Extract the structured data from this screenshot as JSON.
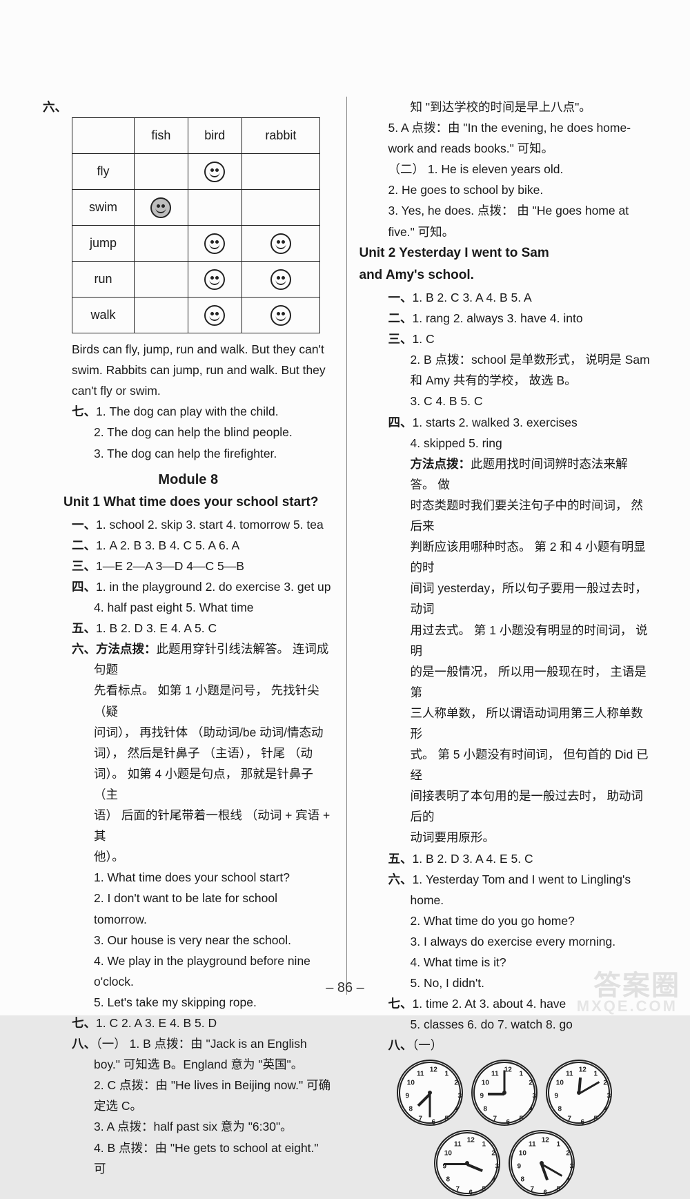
{
  "page_number": "– 86 –",
  "watermark_top": "答案圈",
  "watermark_bottom": "MXQE.COM",
  "table": {
    "columns": [
      "",
      "fish",
      "bird",
      "rabbit"
    ],
    "rows": [
      {
        "label": "fly",
        "cells": [
          "",
          "smile",
          ""
        ]
      },
      {
        "label": "swim",
        "cells": [
          "dark",
          "",
          ""
        ]
      },
      {
        "label": "jump",
        "cells": [
          "",
          "smile",
          "smile"
        ]
      },
      {
        "label": "run",
        "cells": [
          "",
          "smile",
          "smile"
        ]
      },
      {
        "label": "walk",
        "cells": [
          "",
          "smile",
          "smile"
        ]
      }
    ],
    "caption": "Birds can fly, jump, run and walk. But they can't swim. Rabbits can jump, run and walk. But they can't fly or swim."
  },
  "left": {
    "sec6_label": "六、",
    "sec7": {
      "label": "七、",
      "items": [
        "1. The dog can play with the child.",
        "2. The dog can help the blind people.",
        "3. The dog can help the firefighter."
      ]
    },
    "module": "Module 8",
    "unit1_title": "Unit 1  What time does your school start?",
    "q1": {
      "label": "一、",
      "text": "1. school 2. skip 3. start 4. tomorrow 5. tea"
    },
    "q2": {
      "label": "二、",
      "text": "1. A  2. B  3. B  4. C  5. A  6. A"
    },
    "q3": {
      "label": "三、",
      "text": "1—E  2—A  3—D  4—C  5—B"
    },
    "q4": {
      "label": "四、",
      "lines": [
        "1. in the playground  2. do exercise  3. get up",
        "4. half past eight  5. What time"
      ]
    },
    "q5": {
      "label": "五、",
      "text": "1. B  2. D  3. E  4. A  5. C"
    },
    "q6": {
      "label": "六、",
      "heading": "方法点拨：",
      "body": [
        "此题用穿针引线法解答。 连词成句题",
        "先看标点。 如第 1 小题是问号， 先找针尖 （疑",
        "问词）， 再找针体 （助动词/be 动词/情态动",
        "词）， 然后是针鼻子 （主语）， 针尾 （动",
        "词）。 如第 4 小题是句点， 那就是针鼻子 （主",
        "语） 后面的针尾带着一根线 （动词 + 宾语 + 其",
        "他）。"
      ],
      "items": [
        "1. What time does your school start?",
        "2. I don't want to be late for school tomorrow.",
        "3. Our house is very near the school.",
        "4. We play in the playground before nine o'clock.",
        "5. Let's take my skipping rope."
      ]
    },
    "q7": {
      "label": "七、",
      "text": "1. C  2. A  3. E  4. B  5. D"
    },
    "q8": {
      "label": "八、",
      "grp": "（一）",
      "items": [
        "1. B  点拨：由 \"Jack is an English boy.\" 可知选 B。England 意为 \"英国\"。",
        "2. C  点拨：由 \"He lives in Beijing now.\" 可确定选 C。",
        "3. A  点拨：half past six 意为 \"6:30\"。",
        "4. B  点拨：由 \"He gets to school at eight.\" 可"
      ]
    }
  },
  "right": {
    "cont": [
      "知  \"到达学校的时间是早上八点\"。",
      "5. A  点拨：由 \"In the evening, he does home-work and reads books.\" 可知。"
    ],
    "grp2_label": "（二）",
    "grp2_items": [
      "1. He is eleven years old.",
      "2. He goes to school by bike.",
      "3. Yes, he does.    点拨： 由 \"He goes home at five.\" 可知。"
    ],
    "unit2_title_l1": "Unit 2  Yesterday I went to Sam",
    "unit2_title_l2": "and Amy's school.",
    "s1": {
      "label": "一、",
      "text": "1. B  2. C  3. A  4. B  5. A"
    },
    "s2": {
      "label": "二、",
      "text": "1. rang  2. always  3. have  4. into"
    },
    "s3": {
      "label": "三、",
      "lines": [
        "1. C",
        "2. B   点拨：school 是单数形式， 说明是 Sam 和 Amy 共有的学校， 故选 B。",
        "3. C  4. B  5. C"
      ]
    },
    "s4": {
      "label": "四、",
      "lines": [
        "1. starts  2. walked  3. exercises",
        "4. skipped  5. ring"
      ],
      "heading": "方法点拨：",
      "body": [
        "此题用找时间词辨时态法来解答。 做",
        "时态类题时我们要关注句子中的时间词， 然后来",
        "判断应该用哪种时态。 第 2 和 4 小题有明显的时",
        "间词 yesterday，所以句子要用一般过去时， 动词",
        "用过去式。 第 1 小题没有明显的时间词， 说明",
        "的是一般情况， 所以用一般现在时， 主语是第",
        "三人称单数， 所以谓语动词用第三人称单数形",
        "式。 第 5 小题没有时间词， 但句首的 Did 已经",
        "间接表明了本句用的是一般过去时， 助动词后的",
        "动词要用原形。"
      ]
    },
    "s5": {
      "label": "五、",
      "text": "1. B  2. D  3. A  4. E  5. C"
    },
    "s6": {
      "label": "六、",
      "items": [
        "1. Yesterday Tom and I went to Lingling's home.",
        "2. What time do you go home?",
        "3. I always do exercise every morning.",
        "4. What time is it?",
        "5. No, I didn't."
      ]
    },
    "s7": {
      "label": "七、",
      "lines": [
        "1. time  2. At  3. about  4. have",
        "5. classes  6. do  7. watch  8. go"
      ]
    },
    "s8": {
      "label": "八、",
      "grp": "（一）",
      "clocks": [
        {
          "hour": 7,
          "minute": 30
        },
        {
          "hour": 9,
          "minute": 0
        },
        {
          "hour": 12,
          "minute": 10
        },
        {
          "hour": 3,
          "minute": 45
        },
        {
          "hour": 5,
          "minute": 20
        }
      ]
    }
  }
}
